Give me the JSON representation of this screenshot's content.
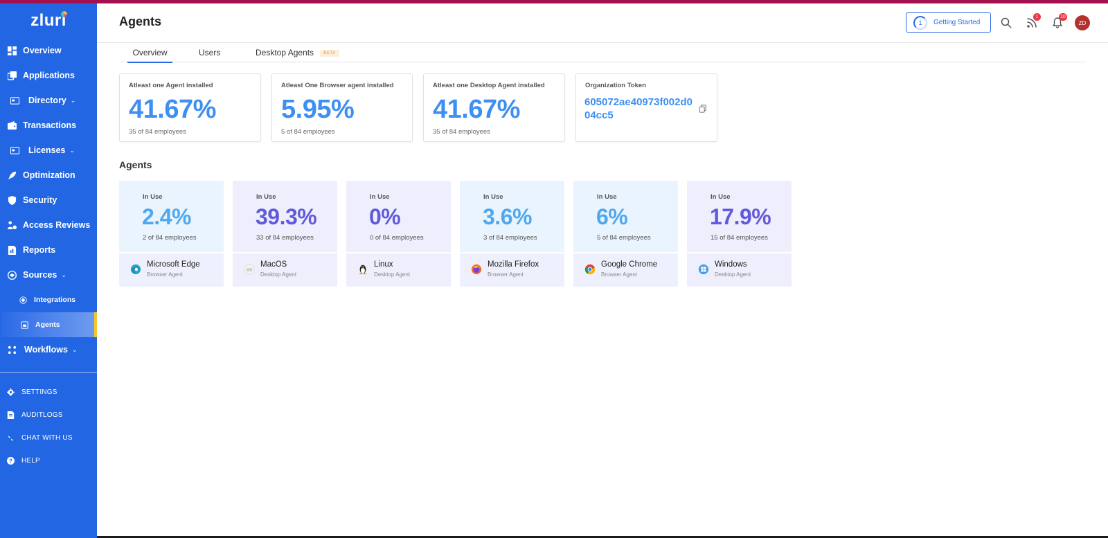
{
  "app": {
    "logo": "zluri"
  },
  "sidebar": {
    "items": [
      {
        "label": "Overview"
      },
      {
        "label": "Applications"
      },
      {
        "label": "Directory"
      },
      {
        "label": "Transactions"
      },
      {
        "label": "Licenses"
      },
      {
        "label": "Optimization"
      },
      {
        "label": "Security"
      },
      {
        "label": "Access Reviews"
      },
      {
        "label": "Reports"
      },
      {
        "label": "Sources"
      },
      {
        "label": "Integrations"
      },
      {
        "label": "Agents"
      },
      {
        "label": "Workflows"
      }
    ],
    "bottom": [
      {
        "label": "SETTINGS"
      },
      {
        "label": "AUDITLOGS"
      },
      {
        "label": "CHAT WITH US"
      },
      {
        "label": "HELP"
      }
    ],
    "accent": "#2266e3",
    "active_marker": "#f6c62a"
  },
  "header": {
    "title": "Agents",
    "getting_started": {
      "label": "Getting Started",
      "step": "1"
    },
    "rss_badge": "1",
    "notif_badge": "10",
    "avatar_initials": "ZD"
  },
  "tabs": [
    {
      "label": "Overview",
      "active": true
    },
    {
      "label": "Users"
    },
    {
      "label": "Desktop Agents",
      "badge": "BETA"
    }
  ],
  "stats": [
    {
      "label": "Atleast one Agent installed",
      "value": "41.67%",
      "sub": "35 of 84 employees"
    },
    {
      "label": "Atleast One Browser agent installed",
      "value": "5.95%",
      "sub": "5 of 84 employees"
    },
    {
      "label": "Atleast one Desktop Agent installed",
      "value": "41.67%",
      "sub": "35 of 84 employees"
    }
  ],
  "token": {
    "label": "Organization Token",
    "value": "605072ae40973f002d004cc5"
  },
  "section_title": "Agents",
  "agents": [
    {
      "status": "In Use",
      "percent": "2.4%",
      "employees": "2 of 84 employees",
      "name": "Microsoft Edge",
      "type": "Browser Agent",
      "icon": "edge-icon"
    },
    {
      "status": "In Use",
      "percent": "39.3%",
      "employees": "33 of 84 employees",
      "name": "MacOS",
      "type": "Desktop Agent",
      "icon": "macos-icon"
    },
    {
      "status": "In Use",
      "percent": "0%",
      "employees": "0 of 84 employees",
      "name": "Linux",
      "type": "Desktop Agent",
      "icon": "linux-icon"
    },
    {
      "status": "In Use",
      "percent": "3.6%",
      "employees": "3 of 84 employees",
      "name": "Mozilla Firefox",
      "type": "Browser Agent",
      "icon": "firefox-icon"
    },
    {
      "status": "In Use",
      "percent": "6%",
      "employees": "5 of 84 employees",
      "name": "Google Chrome",
      "type": "Browser Agent",
      "icon": "chrome-icon"
    },
    {
      "status": "In Use",
      "percent": "17.9%",
      "employees": "15 of 84 employees",
      "name": "Windows",
      "type": "Desktop Agent",
      "icon": "windows-icon"
    }
  ]
}
